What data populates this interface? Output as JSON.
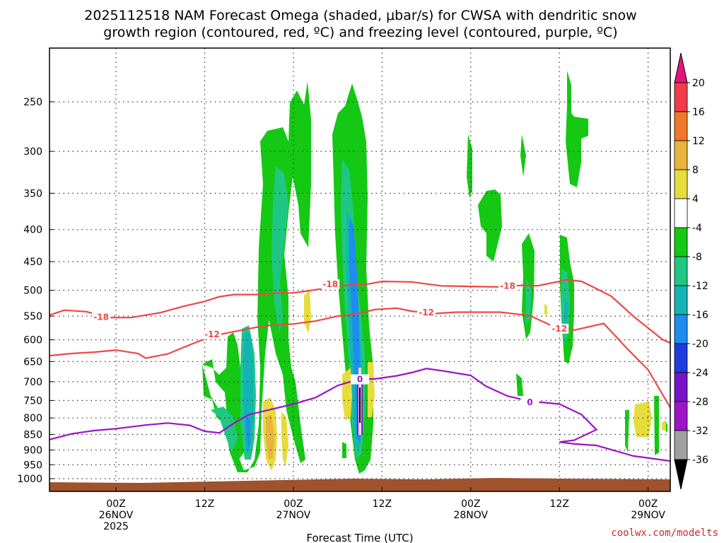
{
  "chart_data": {
    "type": "heatmap",
    "title_lines": [
      "2025112518 NAM Forecast Omega (shaded, μbar/s) for CWSA with dendritic snow",
      "growth region (contoured, red, ºC) and freezing level (contoured, purple, ºC)"
    ],
    "xlabel": "Forecast Time (UTC)",
    "credit": "coolwx.com/modelts",
    "x_range_hours": [
      -9,
      75
    ],
    "x_ticks": [
      {
        "hour": 0,
        "labels": [
          "00Z",
          "26NOV",
          "2025"
        ]
      },
      {
        "hour": 12,
        "labels": [
          "12Z"
        ]
      },
      {
        "hour": 24,
        "labels": [
          "00Z",
          "27NOV"
        ]
      },
      {
        "hour": 36,
        "labels": [
          "12Z"
        ]
      },
      {
        "hour": 48,
        "labels": [
          "00Z",
          "28NOV"
        ]
      },
      {
        "hour": 60,
        "labels": [
          "12Z"
        ]
      },
      {
        "hour": 72,
        "labels": [
          "00Z",
          "29NOV"
        ]
      }
    ],
    "y_ticks_hpa": [
      250,
      300,
      350,
      400,
      450,
      500,
      550,
      600,
      650,
      700,
      750,
      800,
      850,
      900,
      950,
      1000
    ],
    "grid": true,
    "terrain_color": "#a0522d",
    "colorbar": {
      "labels": [
        "20",
        "16",
        "12",
        "8",
        "4",
        "-4",
        "-8",
        "-12",
        "-16",
        "-20",
        "-24",
        "-28",
        "-32",
        "-36"
      ],
      "colors": [
        "#f03c4b",
        "#f07828",
        "#e8b43c",
        "#e6dc3c",
        "#ffffff",
        "#14c814",
        "#1ec882",
        "#14b4b4",
        "#1e8cf0",
        "#1e3cdc",
        "#7814c8",
        "#a014c8",
        "#a0a0a0"
      ],
      "top_arrow_color": "#e6147a",
      "bottom_arrow_color": "#000000"
    },
    "omega_shading": [
      {
        "name": "green-shade",
        "color": "#14c814"
      },
      {
        "name": "teal-shade",
        "color": "#1ec882"
      },
      {
        "name": "cyan-shade",
        "color": "#14b4b4"
      },
      {
        "name": "blue-shade",
        "color": "#1e8cf0"
      },
      {
        "name": "yellow-shade",
        "color": "#e6dc3c"
      },
      {
        "name": "orange-shade",
        "color": "#e8b43c"
      }
    ],
    "red_contours": [
      {
        "value": "-18",
        "color": "#f04646",
        "points": [
          [
            -9,
            548
          ],
          [
            -7,
            538
          ],
          [
            -4,
            541
          ],
          [
            -1,
            553
          ],
          [
            2,
            553
          ],
          [
            6,
            543
          ],
          [
            9,
            531
          ],
          [
            12,
            521
          ],
          [
            14,
            512
          ],
          [
            16,
            508
          ],
          [
            19,
            508
          ],
          [
            22,
            505
          ],
          [
            24,
            505
          ],
          [
            26,
            501
          ],
          [
            28,
            497
          ],
          [
            31,
            491
          ],
          [
            34,
            489
          ],
          [
            36,
            484
          ],
          [
            40,
            485
          ],
          [
            44,
            492
          ],
          [
            48,
            493
          ],
          [
            52,
            494
          ],
          [
            55,
            491
          ],
          [
            57,
            492
          ],
          [
            60,
            484
          ],
          [
            61,
            481
          ],
          [
            63,
            484
          ],
          [
            65,
            497
          ],
          [
            67,
            511
          ],
          [
            70,
            550
          ],
          [
            74,
            600
          ],
          [
            75,
            607
          ]
        ],
        "labels": [
          {
            "hour": -2,
            "p": 552
          },
          {
            "hour": 29,
            "p": 489
          },
          {
            "hour": 53,
            "p": 492
          }
        ]
      },
      {
        "value": "-12",
        "color": "#f04646",
        "points": [
          [
            -9,
            636
          ],
          [
            -6,
            631
          ],
          [
            -3,
            628
          ],
          [
            0,
            623
          ],
          [
            3,
            631
          ],
          [
            4,
            642
          ],
          [
            7,
            632
          ],
          [
            10,
            611
          ],
          [
            13,
            592
          ],
          [
            16,
            582
          ],
          [
            20,
            570
          ],
          [
            24,
            566
          ],
          [
            27,
            560
          ],
          [
            30,
            550
          ],
          [
            32,
            547
          ],
          [
            35,
            537
          ],
          [
            38,
            534
          ],
          [
            40,
            540
          ],
          [
            43,
            545
          ],
          [
            46,
            542
          ],
          [
            48,
            542
          ],
          [
            52,
            542
          ],
          [
            56,
            549
          ],
          [
            59,
            570
          ],
          [
            62,
            579
          ],
          [
            66,
            565
          ],
          [
            69,
            617
          ],
          [
            72,
            670
          ],
          [
            75,
            770
          ]
        ],
        "labels": [
          {
            "hour": 13,
            "p": 588
          },
          {
            "hour": 42,
            "p": 543
          },
          {
            "hour": 60,
            "p": 576
          }
        ]
      }
    ],
    "purple_contours": [
      {
        "value": "0",
        "color": "#9a14c8",
        "points": [
          [
            -9,
            866
          ],
          [
            -6,
            848
          ],
          [
            -3,
            838
          ],
          [
            0,
            832
          ],
          [
            4,
            821
          ],
          [
            7,
            815
          ],
          [
            10,
            822
          ],
          [
            12,
            840
          ],
          [
            14,
            845
          ],
          [
            16,
            815
          ],
          [
            18,
            790
          ],
          [
            21,
            775
          ],
          [
            24,
            760
          ],
          [
            27,
            742
          ],
          [
            30,
            710
          ],
          [
            33,
            693
          ],
          [
            35,
            693
          ],
          [
            38,
            685
          ],
          [
            40,
            677
          ],
          [
            42,
            667
          ],
          [
            44,
            672
          ],
          [
            48,
            684
          ],
          [
            50,
            711
          ],
          [
            53,
            738
          ],
          [
            56,
            752
          ],
          [
            60,
            760
          ],
          [
            63,
            790
          ],
          [
            65,
            835
          ],
          [
            62,
            868
          ],
          [
            60,
            874
          ],
          [
            62,
            880
          ],
          [
            65,
            885
          ],
          [
            70,
            920
          ],
          [
            75,
            937
          ]
        ],
        "labels": [
          {
            "hour": 33,
            "p": 694
          },
          {
            "hour": 56,
            "p": 755
          }
        ]
      }
    ]
  }
}
